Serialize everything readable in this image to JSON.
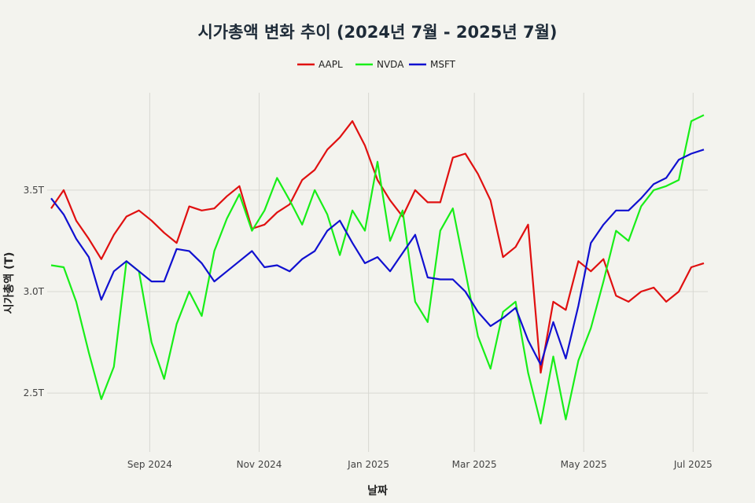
{
  "chart_data": {
    "type": "line",
    "title": "시가총액 변화 추이 (2024년 7월 - 2025년 7월)",
    "xlabel": "날짜",
    "ylabel": "시가총액 (T)",
    "ylim": [
      2.21,
      3.98
    ],
    "xlim": [
      "2024-07-08",
      "2025-07-07"
    ],
    "grid": true,
    "legend_position": "top-center",
    "x_ticks": [
      {
        "date": "2024-09-01",
        "label": "Sep 2024"
      },
      {
        "date": "2024-11-01",
        "label": "Nov 2024"
      },
      {
        "date": "2025-01-01",
        "label": "Jan 2025"
      },
      {
        "date": "2025-03-01",
        "label": "Mar 2025"
      },
      {
        "date": "2025-05-01",
        "label": "May 2025"
      },
      {
        "date": "2025-07-01",
        "label": "Jul 2025"
      }
    ],
    "y_ticks": [
      {
        "value": 2.5,
        "label": "2.5T"
      },
      {
        "value": 3.0,
        "label": "3.0T"
      },
      {
        "value": 3.5,
        "label": "3.5T"
      }
    ],
    "x": [
      "2024-07-08",
      "2024-07-15",
      "2024-07-22",
      "2024-07-29",
      "2024-08-05",
      "2024-08-12",
      "2024-08-19",
      "2024-08-26",
      "2024-09-02",
      "2024-09-09",
      "2024-09-16",
      "2024-09-23",
      "2024-09-30",
      "2024-10-07",
      "2024-10-14",
      "2024-10-21",
      "2024-10-28",
      "2024-11-04",
      "2024-11-11",
      "2024-11-18",
      "2024-11-25",
      "2024-12-02",
      "2024-12-09",
      "2024-12-16",
      "2024-12-23",
      "2024-12-30",
      "2025-01-06",
      "2025-01-13",
      "2025-01-20",
      "2025-01-27",
      "2025-02-03",
      "2025-02-10",
      "2025-02-17",
      "2025-02-24",
      "2025-03-03",
      "2025-03-10",
      "2025-03-17",
      "2025-03-24",
      "2025-03-31",
      "2025-04-07",
      "2025-04-14",
      "2025-04-21",
      "2025-04-28",
      "2025-05-05",
      "2025-05-12",
      "2025-05-19",
      "2025-05-26",
      "2025-06-02",
      "2025-06-09",
      "2025-06-16",
      "2025-06-23",
      "2025-06-30",
      "2025-07-07"
    ],
    "series": [
      {
        "name": "AAPL",
        "color": "#e01010",
        "values": [
          3.41,
          3.5,
          3.35,
          3.26,
          3.16,
          3.28,
          3.37,
          3.4,
          3.35,
          3.29,
          3.24,
          3.42,
          3.4,
          3.41,
          3.47,
          3.52,
          3.31,
          3.33,
          3.39,
          3.43,
          3.55,
          3.6,
          3.7,
          3.76,
          3.84,
          3.72,
          3.55,
          3.45,
          3.37,
          3.5,
          3.44,
          3.44,
          3.66,
          3.68,
          3.58,
          3.45,
          3.17,
          3.22,
          3.33,
          2.6,
          2.95,
          2.91,
          3.15,
          3.1,
          3.16,
          2.98,
          2.95,
          3.0,
          3.02,
          2.95,
          3.0,
          3.12,
          3.14
        ]
      },
      {
        "name": "NVDA",
        "color": "#18ee18",
        "values": [
          3.13,
          3.12,
          2.95,
          2.7,
          2.47,
          2.63,
          3.15,
          3.1,
          2.75,
          2.57,
          2.84,
          3.0,
          2.88,
          3.2,
          3.36,
          3.48,
          3.3,
          3.4,
          3.56,
          3.45,
          3.33,
          3.5,
          3.38,
          3.18,
          3.4,
          3.3,
          3.64,
          3.25,
          3.4,
          2.95,
          2.85,
          3.3,
          3.41,
          3.1,
          2.78,
          2.62,
          2.9,
          2.95,
          2.6,
          2.35,
          2.68,
          2.37,
          2.66,
          2.82,
          3.05,
          3.3,
          3.25,
          3.42,
          3.5,
          3.52,
          3.55,
          3.84,
          3.87
        ]
      },
      {
        "name": "MSFT",
        "color": "#1010d0",
        "values": [
          3.46,
          3.38,
          3.26,
          3.17,
          2.96,
          3.1,
          3.15,
          3.1,
          3.05,
          3.05,
          3.21,
          3.2,
          3.14,
          3.05,
          3.1,
          3.15,
          3.2,
          3.12,
          3.13,
          3.1,
          3.16,
          3.2,
          3.3,
          3.35,
          3.24,
          3.14,
          3.17,
          3.1,
          3.19,
          3.28,
          3.07,
          3.06,
          3.06,
          3.0,
          2.9,
          2.83,
          2.87,
          2.92,
          2.76,
          2.64,
          2.85,
          2.67,
          2.93,
          3.24,
          3.33,
          3.4,
          3.4,
          3.46,
          3.53,
          3.56,
          3.65,
          3.68,
          3.7
        ]
      }
    ]
  }
}
